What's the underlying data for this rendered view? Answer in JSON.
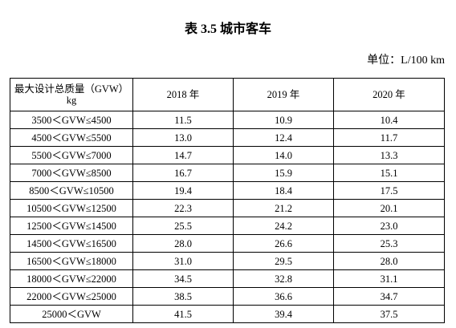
{
  "title": "表 3.5 城市客车",
  "unit": "单位：L/100 km",
  "table": {
    "corner": [
      "最大设计总质量（GVW）",
      "kg"
    ],
    "columns": [
      "2018 年",
      "2019 年",
      "2020 年"
    ],
    "rows": [
      [
        "3500＜GVW≤4500",
        "11.5",
        "10.9",
        "10.4"
      ],
      [
        "4500＜GVW≤5500",
        "13.0",
        "12.4",
        "11.7"
      ],
      [
        "5500＜GVW≤7000",
        "14.7",
        "14.0",
        "13.3"
      ],
      [
        "7000＜GVW≤8500",
        "16.7",
        "15.9",
        "15.1"
      ],
      [
        "8500＜GVW≤10500",
        "19.4",
        "18.4",
        "17.5"
      ],
      [
        "10500＜GVW≤12500",
        "22.3",
        "21.2",
        "20.1"
      ],
      [
        "12500＜GVW≤14500",
        "25.5",
        "24.2",
        "23.0"
      ],
      [
        "14500＜GVW≤16500",
        "28.0",
        "26.6",
        "25.3"
      ],
      [
        "16500＜GVW≤18000",
        "31.0",
        "29.5",
        "28.0"
      ],
      [
        "18000＜GVW≤22000",
        "34.5",
        "32.8",
        "31.1"
      ],
      [
        "22000＜GVW≤25000",
        "38.5",
        "36.6",
        "34.7"
      ],
      [
        "25000＜GVW",
        "41.5",
        "39.4",
        "37.5"
      ]
    ]
  }
}
